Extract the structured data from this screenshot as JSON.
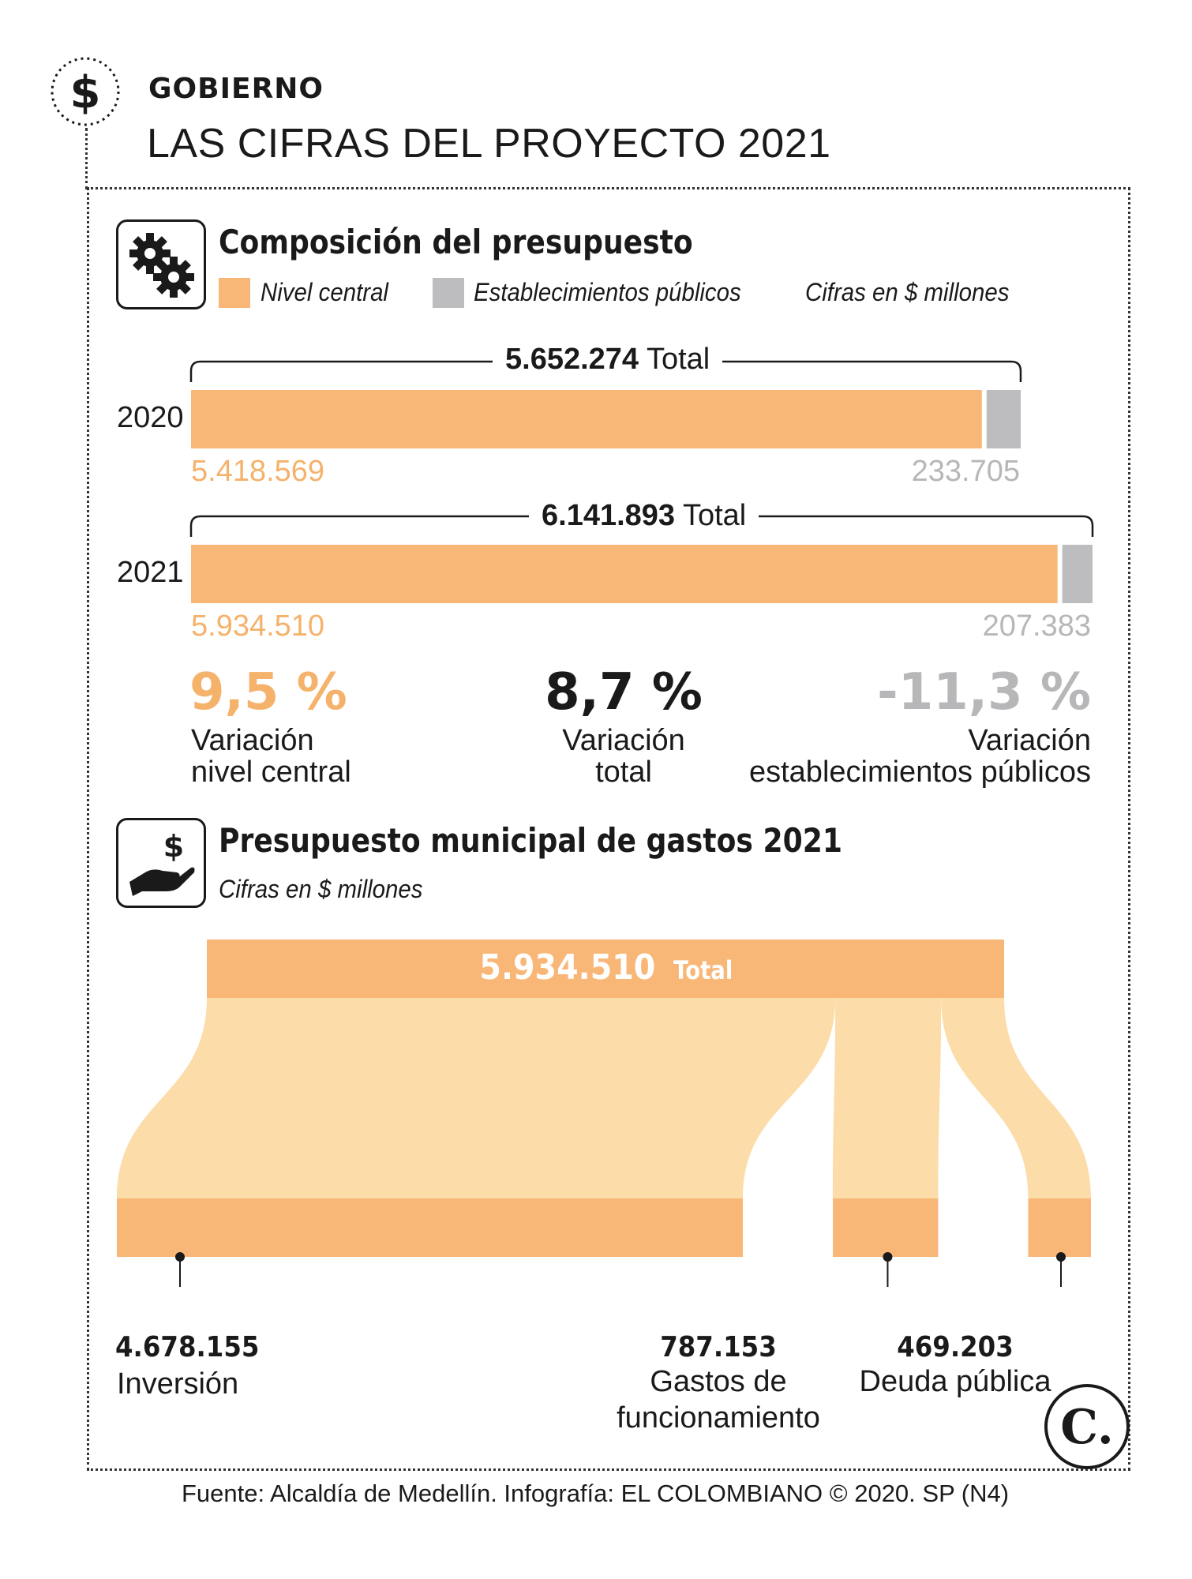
{
  "header": {
    "kicker": "GOBIERNO",
    "headline": "LAS CIFRAS DEL PROYECTO 2021",
    "icon": "dollar-icon"
  },
  "composition": {
    "title": "Composición del presupuesto",
    "icon": "gears-icon",
    "legend": {
      "central": "Nivel central",
      "public": "Establecimientos públicos",
      "units": "Cifras en $ millones"
    },
    "total_word": "Total",
    "rows": [
      {
        "year": "2020",
        "total": "5.652.274",
        "central": "5.418.569",
        "public": "233.705"
      },
      {
        "year": "2021",
        "total": "6.141.893",
        "central": "5.934.510",
        "public": "207.383"
      }
    ],
    "variations": [
      {
        "value": "9,5 %",
        "line1": "Variación",
        "line2": "nivel central"
      },
      {
        "value": "8,7 %",
        "line1": "Variación",
        "line2": "total"
      },
      {
        "value": "-11,3 %",
        "line1": "Variación",
        "line2": "establecimientos públicos"
      }
    ]
  },
  "spending": {
    "title": "Presupuesto municipal de gastos 2021",
    "icon": "hand-money-icon",
    "units": "Cifras en $ millones",
    "total_value": "5.934.510",
    "total_word": "Total",
    "items": [
      {
        "value": "4.678.155",
        "line1": "Inversión",
        "line2": ""
      },
      {
        "value": "787.153",
        "line1": "Gastos de",
        "line2": "funcionamiento"
      },
      {
        "value": "469.203",
        "line1": "Deuda pública",
        "line2": ""
      }
    ]
  },
  "footer": {
    "source": "Fuente: Alcaldía de Medellín. Infografía: EL COLOMBIANO © 2020. SP (N4)",
    "logo_letter": "C."
  },
  "colors": {
    "orange": "#f9b777",
    "light_orange": "#fcdca8",
    "gray": "#bdbdc0",
    "orange_text": "#f5b26b",
    "gray_text": "#b7b7b9"
  },
  "chart_data": [
    {
      "type": "bar",
      "title": "Composición del presupuesto",
      "units": "Cifras en $ millones",
      "stacked": true,
      "orientation": "horizontal",
      "categories": [
        "2020",
        "2021"
      ],
      "series": [
        {
          "name": "Nivel central",
          "values": [
            5418569,
            5934510
          ]
        },
        {
          "name": "Establecimientos públicos",
          "values": [
            233705,
            207383
          ]
        }
      ],
      "totals": [
        5652274,
        6141893
      ]
    },
    {
      "type": "bar",
      "title": "Presupuesto municipal de gastos 2021",
      "units": "Cifras en $ millones",
      "total": 5934510,
      "categories": [
        "Inversión",
        "Gastos de funcionamiento",
        "Deuda pública"
      ],
      "values": [
        4678155,
        787153,
        469203
      ]
    }
  ]
}
